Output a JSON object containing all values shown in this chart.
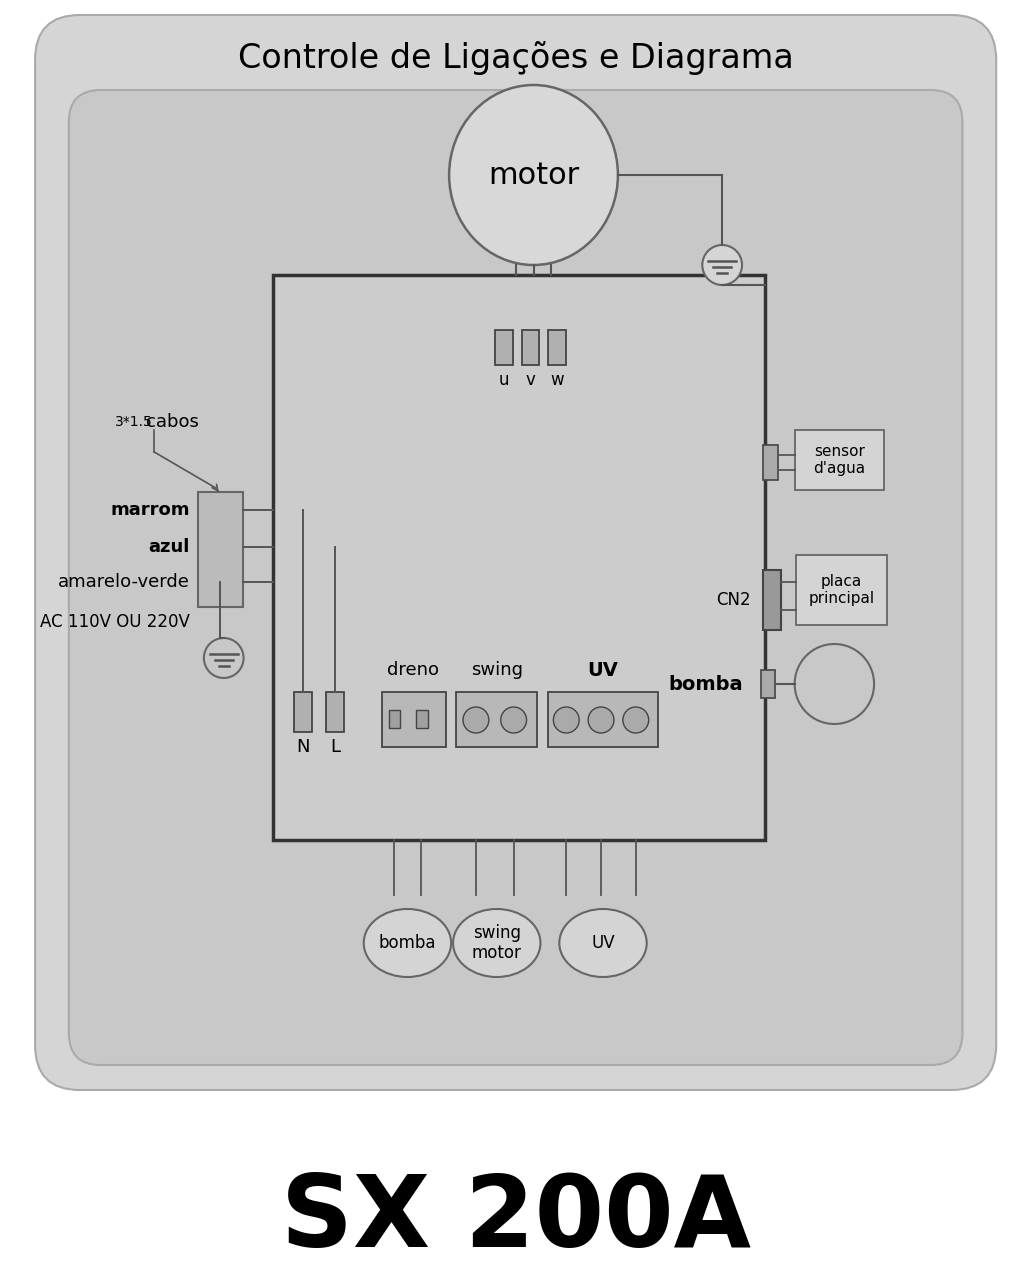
{
  "title": "Controle de Ligações e Diagrama",
  "subtitle": "SX 200A",
  "bg_outer": "#d5d5d5",
  "bg_inner": "#cccccc",
  "bg_white": "#ffffff",
  "line_color": "#555555",
  "title_fontsize": 24,
  "subtitle_fontsize": 72,
  "motor_label": "motor",
  "uvw_labels": [
    "u",
    "v",
    "w"
  ],
  "nl_labels": [
    "N",
    "L"
  ],
  "wire_labels": [
    "marrom",
    "azul",
    "amarelo-verde"
  ],
  "ac_label": "AC 110V OU 220V",
  "cabos_label_small": "3*1.5",
  "cabos_label_large": "cabos",
  "cn2_label": "CN2",
  "sensor_label": "sensor\nd'agua",
  "placa_label": "placa\nprincipal",
  "bomba_label": "bomba",
  "dreno_label": "dreno",
  "swing_label": "swing",
  "uv_label": "UV",
  "bottom_circles": [
    "bomba",
    "swing\nmotor",
    "UV"
  ]
}
